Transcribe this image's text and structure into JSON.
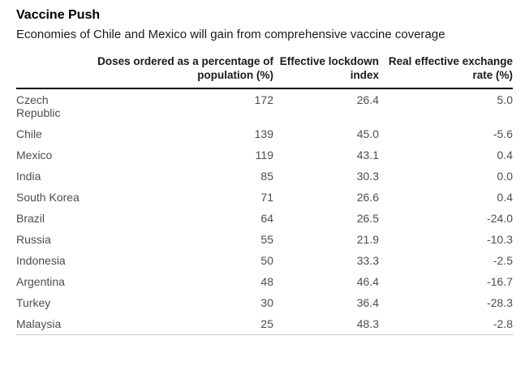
{
  "header": {
    "title": "Vaccine Push",
    "subtitle": "Economies of Chile and Mexico will gain from comprehensive vaccine coverage"
  },
  "table": {
    "columns": [
      {
        "label": ""
      },
      {
        "label": "Doses ordered as a percentage of population (%)"
      },
      {
        "label": "Effective lockdown index"
      },
      {
        "label": "Real effective exchange rate (%)"
      }
    ],
    "rows": [
      {
        "country": "Czech Republic",
        "doses": "172",
        "lockdown": "26.4",
        "fx": "5.0"
      },
      {
        "country": "Chile",
        "doses": "139",
        "lockdown": "45.0",
        "fx": "-5.6"
      },
      {
        "country": "Mexico",
        "doses": "119",
        "lockdown": "43.1",
        "fx": "0.4"
      },
      {
        "country": "India",
        "doses": "85",
        "lockdown": "30.3",
        "fx": "0.0"
      },
      {
        "country": "South Korea",
        "doses": "71",
        "lockdown": "26.6",
        "fx": "0.4"
      },
      {
        "country": "Brazil",
        "doses": "64",
        "lockdown": "26.5",
        "fx": "-24.0"
      },
      {
        "country": "Russia",
        "doses": "55",
        "lockdown": "21.9",
        "fx": "-10.3"
      },
      {
        "country": "Indonesia",
        "doses": "50",
        "lockdown": "33.3",
        "fx": "-2.5"
      },
      {
        "country": "Argentina",
        "doses": "48",
        "lockdown": "46.4",
        "fx": "-16.7"
      },
      {
        "country": "Turkey",
        "doses": "30",
        "lockdown": "36.4",
        "fx": "-28.3"
      },
      {
        "country": "Malaysia",
        "doses": "25",
        "lockdown": "48.3",
        "fx": "-2.8"
      }
    ]
  },
  "colors": {
    "background": "#ffffff",
    "title_text": "#000000",
    "header_text": "#1a1a1a",
    "cell_text": "#4d4d4d",
    "header_rule": "#000000",
    "bottom_rule": "#c9c9c9"
  },
  "chart_data": {
    "type": "table",
    "title": "Vaccine Push",
    "subtitle": "Economies of Chile and Mexico will gain from comprehensive vaccine coverage",
    "categories": [
      "Czech Republic",
      "Chile",
      "Mexico",
      "India",
      "South Korea",
      "Brazil",
      "Russia",
      "Indonesia",
      "Argentina",
      "Turkey",
      "Malaysia"
    ],
    "series": [
      {
        "name": "Doses ordered as a percentage of population (%)",
        "values": [
          172,
          139,
          119,
          85,
          71,
          64,
          55,
          50,
          48,
          30,
          25
        ]
      },
      {
        "name": "Effective lockdown index",
        "values": [
          26.4,
          45.0,
          43.1,
          30.3,
          26.6,
          26.5,
          21.9,
          33.3,
          46.4,
          36.4,
          48.3
        ]
      },
      {
        "name": "Real effective exchange rate (%)",
        "values": [
          5.0,
          -5.6,
          0.4,
          0.0,
          0.4,
          -24.0,
          -10.3,
          -2.5,
          -16.7,
          -28.3,
          -2.8
        ]
      }
    ],
    "layout": {
      "sorted_by": "doses_descending",
      "grid": "off",
      "header_rule": "on"
    }
  }
}
